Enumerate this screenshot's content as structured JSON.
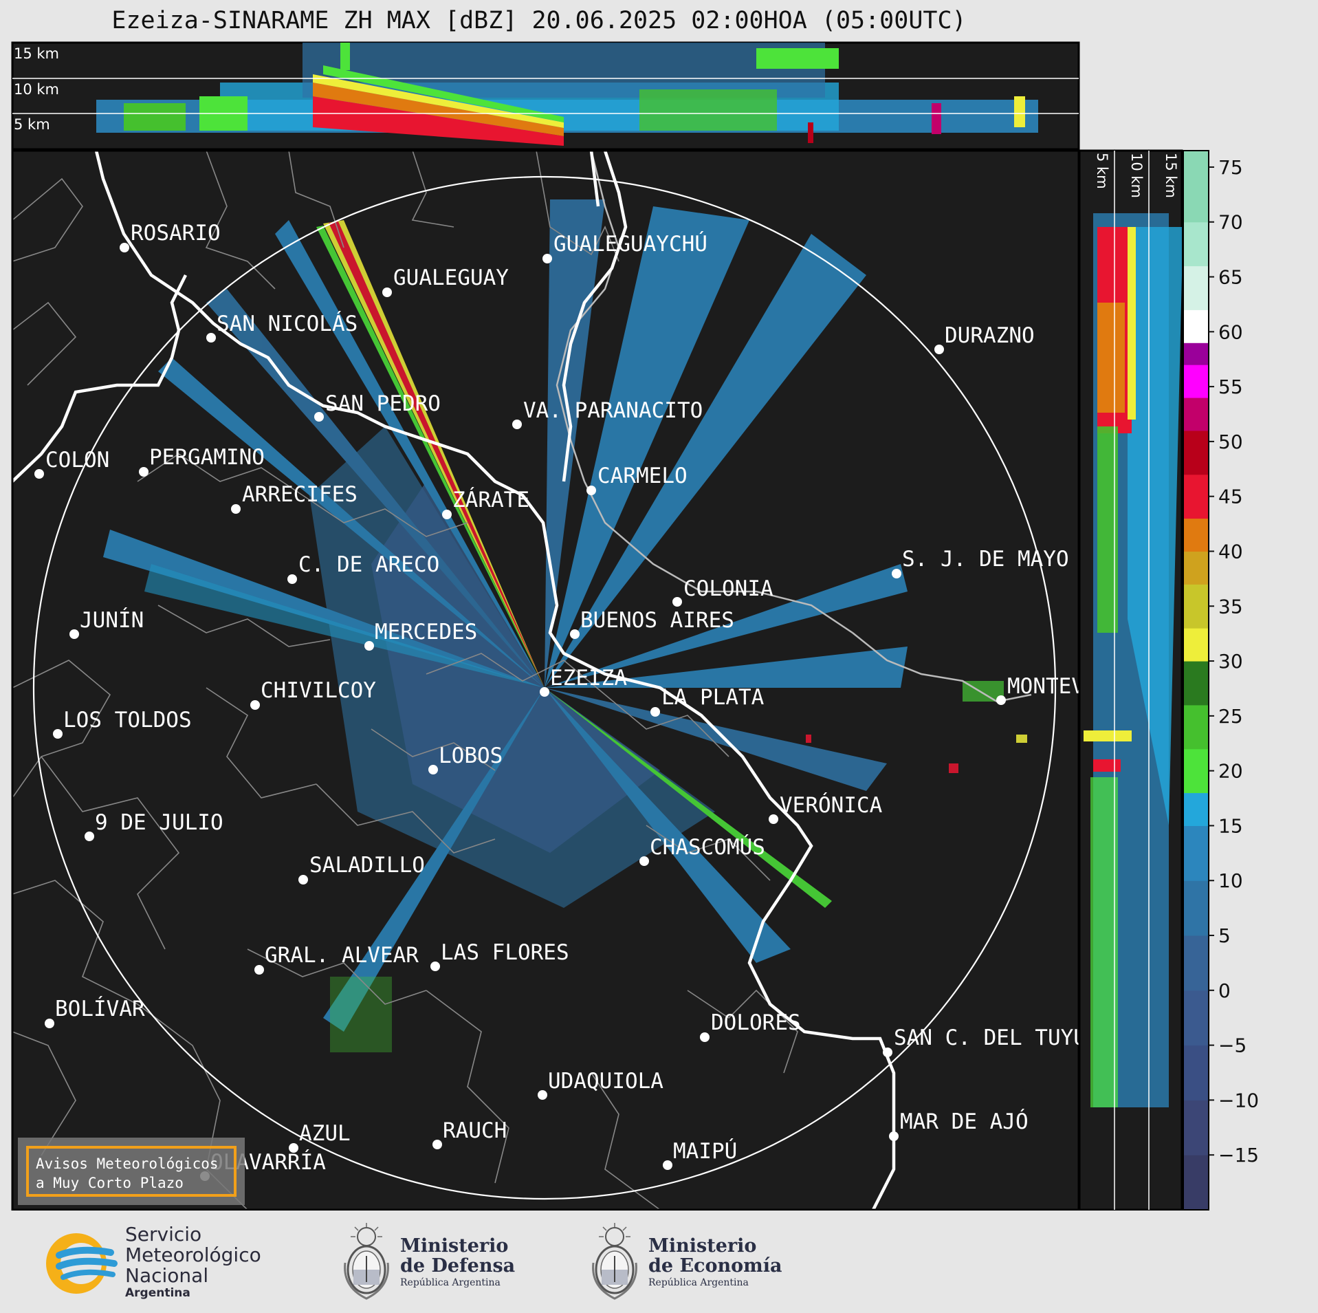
{
  "title": "Ezeiza-SINARAME ZH MAX [dBZ] 20.06.2025 02:00HOA (05:00UTC)",
  "top_panel": {
    "height_labels": [
      "15 km",
      "10 km",
      "5 km"
    ]
  },
  "side_panel": {
    "height_labels": [
      "5 km",
      "10 km",
      "15 km"
    ]
  },
  "cities": [
    {
      "name": "ROSARIO"
    },
    {
      "name": "GUALEGUAYCHÚ"
    },
    {
      "name": "GUALEGUAY"
    },
    {
      "name": "SAN NICOLÁS"
    },
    {
      "name": "DURAZNO"
    },
    {
      "name": "SAN PEDRO"
    },
    {
      "name": "VA. PARANACITO"
    },
    {
      "name": "COLON"
    },
    {
      "name": "PERGAMINO"
    },
    {
      "name": "CARMELO"
    },
    {
      "name": "ARRECIFES"
    },
    {
      "name": "ZÁRATE"
    },
    {
      "name": "S. J. DE MAYO"
    },
    {
      "name": "C. DE ARECO"
    },
    {
      "name": "COLONIA"
    },
    {
      "name": "JUNÍN"
    },
    {
      "name": "BUENOS AIRES"
    },
    {
      "name": "MERCEDES"
    },
    {
      "name": "EZEIZA"
    },
    {
      "name": "MONTEV"
    },
    {
      "name": "CHIVILCOY"
    },
    {
      "name": "LA PLATA"
    },
    {
      "name": "LOS TOLDOS"
    },
    {
      "name": "LOBOS"
    },
    {
      "name": "VERÓNICA"
    },
    {
      "name": "9 DE JULIO"
    },
    {
      "name": "CHASCOMÚS"
    },
    {
      "name": "SALADILLO"
    },
    {
      "name": "GRAL. ALVEAR"
    },
    {
      "name": "LAS FLORES"
    },
    {
      "name": "BOLÍVAR"
    },
    {
      "name": "DOLORES"
    },
    {
      "name": "SAN C. DEL TUYÚ"
    },
    {
      "name": "UDAQUIOLA"
    },
    {
      "name": "MAR DE AJÓ"
    },
    {
      "name": "AZUL"
    },
    {
      "name": "RAUCH"
    },
    {
      "name": "MAIPÚ"
    },
    {
      "name": "OLAVARRÍA"
    }
  ],
  "colorbar": {
    "ticks": [
      "75",
      "70",
      "65",
      "60",
      "55",
      "50",
      "45",
      "40",
      "35",
      "30",
      "25",
      "20",
      "15",
      "10",
      "5",
      "0",
      "−5",
      "−10",
      "−15"
    ],
    "min": -20,
    "max": 76.5,
    "colors": {
      "-20": "#383c66",
      "-15": "#3c4676",
      "-10": "#3a4f84",
      "-5": "#3b5a8f",
      "0": "#376497",
      "5": "#2f74a6",
      "10": "#2c86bd",
      "15": "#23a7db",
      "18": "#4de33a",
      "22": "#45c02e",
      "26": "#2a7a1f",
      "30": "#eeee3a",
      "33": "#c8c62a",
      "37": "#cfa21e",
      "40": "#e07a10",
      "43": "#e81530",
      "47": "#b8001a",
      "51": "#c2006a",
      "54": "#ff00ff",
      "57": "#9a009a",
      "59": "#ffffff",
      "62": "#d5f2e6",
      "66": "#a8e6cc",
      "70": "#8ad8b4"
    }
  },
  "avisos": {
    "line1": "Avisos Meteorológicos",
    "line2": "a Muy Corto Plazo"
  },
  "logos": {
    "smn": {
      "line1": "Servicio",
      "line2": "Meteorológico",
      "line3": "Nacional",
      "line4": "Argentina"
    },
    "defensa": {
      "line1": "Ministerio",
      "line2": "de Defensa",
      "line3": "República Argentina"
    },
    "economia": {
      "line1": "Ministerio",
      "line2": "de Economía",
      "line3": "República Argentina"
    }
  },
  "theme": {
    "map_bg": "#1c1c1c",
    "accent_orange": "#f2a01a",
    "smn_blue": "#2e9bd6",
    "smn_yellow": "#f5b018"
  }
}
